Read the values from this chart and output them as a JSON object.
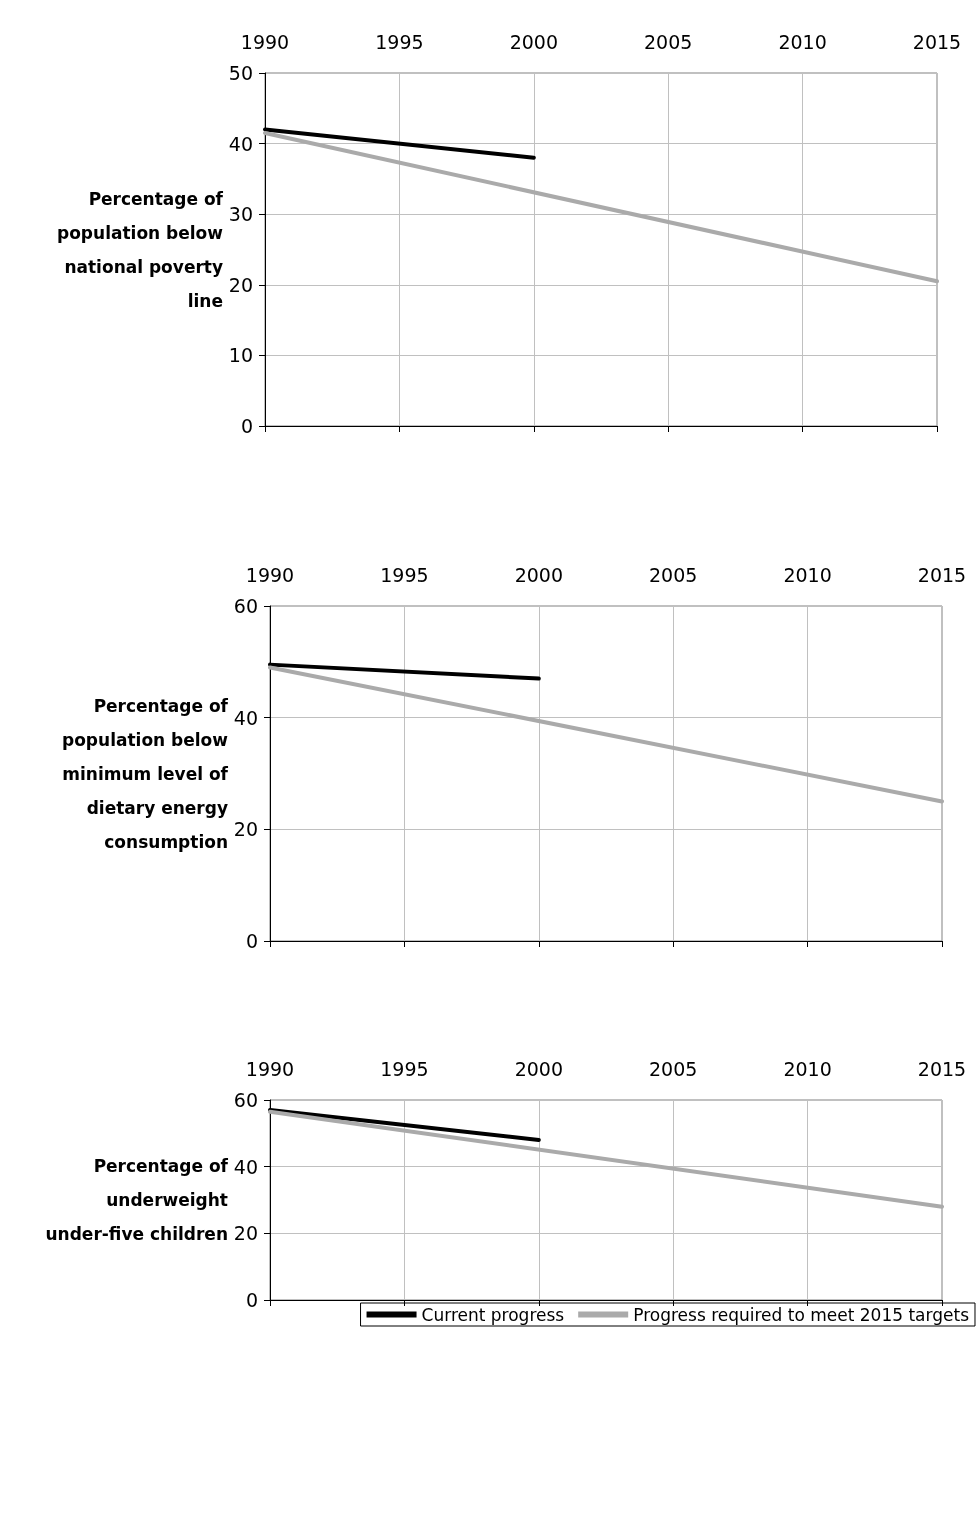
{
  "chart_data": [
    {
      "type": "line",
      "ylabel": "Percentage of population below national poverty line",
      "xlim": [
        1990,
        2015
      ],
      "xticks": [
        1990,
        1995,
        2000,
        2005,
        2010,
        2015
      ],
      "ylim": [
        0,
        50
      ],
      "yticks": [
        0,
        10,
        20,
        30,
        40,
        50
      ],
      "grid": true,
      "marker": "none",
      "line_style": "solid",
      "series": [
        {
          "color": "#000000",
          "x": [
            1990,
            2000
          ],
          "values": [
            42,
            38
          ]
        },
        {
          "color": "#aaaaaa",
          "x": [
            1990,
            2015
          ],
          "values": [
            41.5,
            20.5
          ]
        }
      ]
    },
    {
      "type": "line",
      "ylabel": "Percentage of population below minimum level of dietary energy consumption",
      "xlim": [
        1990,
        2015
      ],
      "xticks": [
        1990,
        1995,
        2000,
        2005,
        2010,
        2015
      ],
      "ylim": [
        0,
        60
      ],
      "yticks": [
        0,
        20,
        40,
        60
      ],
      "grid": true,
      "marker": "none",
      "line_style": "solid",
      "series": [
        {
          "color": "#000000",
          "x": [
            1990,
            2000
          ],
          "values": [
            49.5,
            47
          ]
        },
        {
          "color": "#aaaaaa",
          "x": [
            1990,
            2015
          ],
          "values": [
            49,
            25
          ]
        }
      ]
    },
    {
      "type": "line",
      "ylabel": "Percentage of underweight under-five children",
      "xlim": [
        1990,
        2015
      ],
      "xticks": [
        1990,
        1995,
        2000,
        2005,
        2010,
        2015
      ],
      "ylim": [
        0,
        60
      ],
      "yticks": [
        0,
        20,
        40,
        60
      ],
      "grid": true,
      "marker": "none",
      "line_style": "solid",
      "legend": "bottom",
      "series": [
        {
          "name": "Current progress",
          "color": "#000000",
          "x": [
            1990,
            2000
          ],
          "values": [
            57,
            48
          ]
        },
        {
          "name": "Progress required to meet 2015 targets",
          "color": "#aaaaaa",
          "x": [
            1990,
            2015
          ],
          "values": [
            56.5,
            28
          ]
        }
      ]
    }
  ]
}
